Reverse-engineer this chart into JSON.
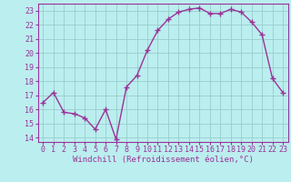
{
  "x": [
    0,
    1,
    2,
    3,
    4,
    5,
    6,
    7,
    8,
    9,
    10,
    11,
    12,
    13,
    14,
    15,
    16,
    17,
    18,
    19,
    20,
    21,
    22,
    23
  ],
  "y": [
    16.5,
    17.2,
    15.8,
    15.7,
    15.4,
    14.6,
    16.0,
    13.9,
    17.6,
    18.4,
    20.2,
    21.6,
    22.4,
    22.9,
    23.1,
    23.2,
    22.8,
    22.8,
    23.1,
    22.9,
    22.2,
    21.3,
    18.2,
    17.2
  ],
  "color": "#993399",
  "bg_color": "#bbeeee",
  "grid_color": "#99cccc",
  "xlabel": "Windchill (Refroidissement éolien,°C)",
  "xlabel_color": "#993399",
  "tick_color": "#993399",
  "ylim": [
    13.7,
    23.5
  ],
  "xlim": [
    -0.5,
    23.5
  ],
  "yticks": [
    14,
    15,
    16,
    17,
    18,
    19,
    20,
    21,
    22,
    23
  ],
  "xticks": [
    0,
    1,
    2,
    3,
    4,
    5,
    6,
    7,
    8,
    9,
    10,
    11,
    12,
    13,
    14,
    15,
    16,
    17,
    18,
    19,
    20,
    21,
    22,
    23
  ],
  "marker": "+",
  "markersize": 4,
  "linewidth": 1.0,
  "xlabel_fontsize": 6.5,
  "tick_fontsize": 6.0,
  "spine_color": "#993399"
}
